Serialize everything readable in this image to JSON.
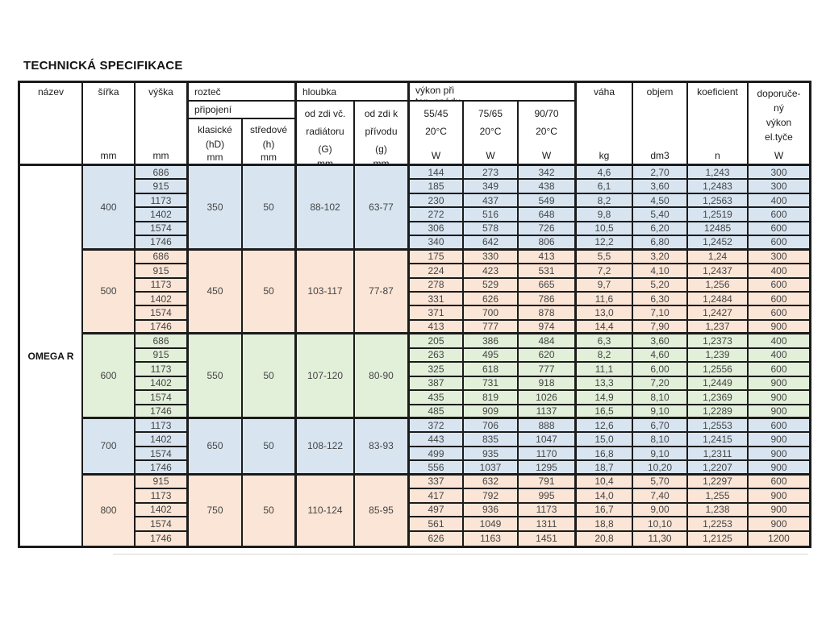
{
  "page": {
    "title": "TECHNICKÁ SPECIFIKACE"
  },
  "colors": {
    "border": "#1b1b1b",
    "group_blue": "#d8e5f1",
    "group_peach": "#fbe5d6",
    "group_green": "#e2efd9",
    "body_text": "#454545"
  },
  "table": {
    "product_name": "OMEGA R",
    "header": {
      "nazev": "název",
      "sirka": "šířka",
      "vyska": "výška",
      "roztec": "rozteč",
      "pripojeni": "připojení",
      "klasicke_l1": "klasické",
      "klasicke_l2": "(hD)",
      "stredove_l1": "středové",
      "stredove_l2": "(h)",
      "hloubka": "hloubka",
      "g1_l1": "od zdi  vč.",
      "g1_l2": "radiátoru",
      "g1_l3": "(G)",
      "g2_l1": "od zdi  k",
      "g2_l2": "přívodu",
      "g2_l3": "(g)",
      "vykon_l1": "výkon při",
      "vykon_l2": "tep. spádu",
      "t1": "55/45",
      "t2": "75/65",
      "t3": "90/70",
      "deg": "20°C",
      "vaha": "váha",
      "objem": "objem",
      "koeficient": "koeficient",
      "dop_l1": "doporuče-",
      "dop_l2": "ný",
      "dop_l3": "výkon",
      "dop_l4": "el.tyče",
      "unit_mm": "mm",
      "unit_w": "W",
      "unit_kg": "kg",
      "unit_dm3": "dm3",
      "unit_n": "n"
    },
    "groups": [
      {
        "sirka": "400",
        "klasicke": "350",
        "stredove": "50",
        "g_range": "88-102",
        "g2_range": "63-77",
        "color": "blue",
        "rows": [
          [
            "686",
            "144",
            "273",
            "342",
            "4,6",
            "2,70",
            "1,243",
            "300"
          ],
          [
            "915",
            "185",
            "349",
            "438",
            "6,1",
            "3,60",
            "1,2483",
            "300"
          ],
          [
            "1173",
            "230",
            "437",
            "549",
            "8,2",
            "4,50",
            "1,2563",
            "400"
          ],
          [
            "1402",
            "272",
            "516",
            "648",
            "9,8",
            "5,40",
            "1,2519",
            "600"
          ],
          [
            "1574",
            "306",
            "578",
            "726",
            "10,5",
            "6,20",
            "12485",
            "600"
          ],
          [
            "1746",
            "340",
            "642",
            "806",
            "12,2",
            "6,80",
            "1,2452",
            "600"
          ]
        ]
      },
      {
        "sirka": "500",
        "klasicke": "450",
        "stredove": "50",
        "g_range": "103-117",
        "g2_range": "77-87",
        "color": "peach",
        "rows": [
          [
            "686",
            "175",
            "330",
            "413",
            "5,5",
            "3,20",
            "1,24",
            "300"
          ],
          [
            "915",
            "224",
            "423",
            "531",
            "7,2",
            "4,10",
            "1,2437",
            "400"
          ],
          [
            "1173",
            "278",
            "529",
            "665",
            "9,7",
            "5,20",
            "1,256",
            "600"
          ],
          [
            "1402",
            "331",
            "626",
            "786",
            "11,6",
            "6,30",
            "1,2484",
            "600"
          ],
          [
            "1574",
            "371",
            "700",
            "878",
            "13,0",
            "7,10",
            "1,2427",
            "600"
          ],
          [
            "1746",
            "413",
            "777",
            "974",
            "14,4",
            "7,90",
            "1,237",
            "900"
          ]
        ]
      },
      {
        "sirka": "600",
        "klasicke": "550",
        "stredove": "50",
        "g_range": "107-120",
        "g2_range": "80-90",
        "color": "green",
        "rows": [
          [
            "686",
            "205",
            "386",
            "484",
            "6,3",
            "3,60",
            "1,2373",
            "400"
          ],
          [
            "915",
            "263",
            "495",
            "620",
            "8,2",
            "4,60",
            "1,239",
            "400"
          ],
          [
            "1173",
            "325",
            "618",
            "777",
            "11,1",
            "6,00",
            "1,2556",
            "600"
          ],
          [
            "1402",
            "387",
            "731",
            "918",
            "13,3",
            "7,20",
            "1,2449",
            "900"
          ],
          [
            "1574",
            "435",
            "819",
            "1026",
            "14,9",
            "8,10",
            "1,2369",
            "900"
          ],
          [
            "1746",
            "485",
            "909",
            "1137",
            "16,5",
            "9,10",
            "1,2289",
            "900"
          ]
        ]
      },
      {
        "sirka": "700",
        "klasicke": "650",
        "stredove": "50",
        "g_range": "108-122",
        "g2_range": "83-93",
        "color": "blue",
        "rows": [
          [
            "1173",
            "372",
            "706",
            "888",
            "12,6",
            "6,70",
            "1,2553",
            "600"
          ],
          [
            "1402",
            "443",
            "835",
            "1047",
            "15,0",
            "8,10",
            "1,2415",
            "900"
          ],
          [
            "1574",
            "499",
            "935",
            "1170",
            "16,8",
            "9,10",
            "1,2311",
            "900"
          ],
          [
            "1746",
            "556",
            "1037",
            "1295",
            "18,7",
            "10,20",
            "1,2207",
            "900"
          ]
        ]
      },
      {
        "sirka": "800",
        "klasicke": "750",
        "stredove": "50",
        "g_range": "110-124",
        "g2_range": "85-95",
        "color": "peach",
        "rows": [
          [
            "915",
            "337",
            "632",
            "791",
            "10,4",
            "5,70",
            "1,2297",
            "600"
          ],
          [
            "1173",
            "417",
            "792",
            "995",
            "14,0",
            "7,40",
            "1,255",
            "900"
          ],
          [
            "1402",
            "497",
            "936",
            "1173",
            "16,7",
            "9,00",
            "1,238",
            "900"
          ],
          [
            "1574",
            "561",
            "1049",
            "1311",
            "18,8",
            "10,10",
            "1,2253",
            "900"
          ],
          [
            "1746",
            "626",
            "1163",
            "1451",
            "20,8",
            "11,30",
            "1,2125",
            "1200"
          ]
        ]
      }
    ]
  }
}
